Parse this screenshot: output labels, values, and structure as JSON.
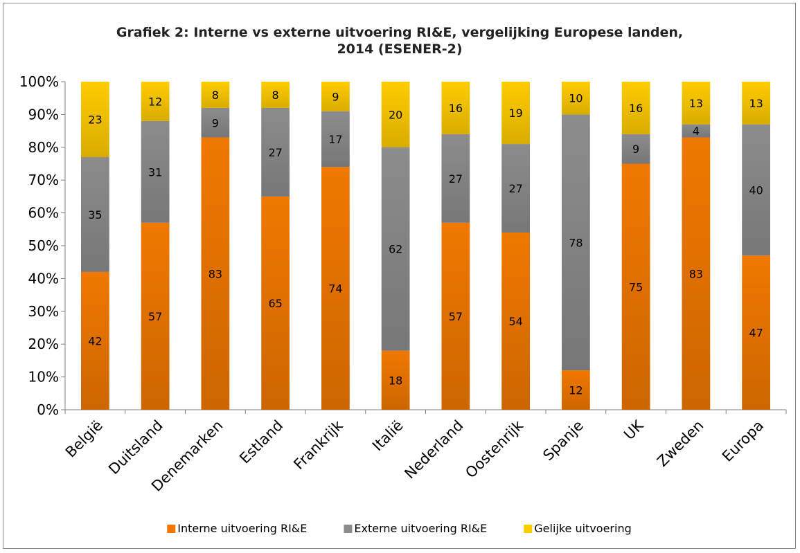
{
  "chart_data": {
    "type": "bar",
    "stacked": true,
    "title_line1": "Grafiek 2: Interne vs externe uitvoering RI&E, vergelijking Europese landen,",
    "title_line2": "2014 (ESENER-2)",
    "categories": [
      "België",
      "Duitsland",
      "Denemarken",
      "Estland",
      "Frankrijk",
      "Italië",
      "Nederland",
      "Oostenrijk",
      "Spanje",
      "UK",
      "Zweden",
      "Europa"
    ],
    "series": [
      {
        "name": "Interne uitvoering RI&E",
        "color": "#f07800",
        "values": [
          42,
          57,
          83,
          65,
          74,
          18,
          57,
          54,
          12,
          75,
          83,
          47
        ]
      },
      {
        "name": "Externe uitvoering RI&E",
        "color": "#8c8c8c",
        "values": [
          35,
          31,
          9,
          27,
          17,
          62,
          27,
          27,
          78,
          9,
          4,
          40
        ]
      },
      {
        "name": "Gelijke uitvoering",
        "color": "#ffcc00",
        "values": [
          23,
          12,
          8,
          8,
          9,
          20,
          16,
          19,
          10,
          16,
          13,
          13
        ]
      }
    ],
    "ylim": [
      0,
      100
    ],
    "yticks": [
      "0%",
      "10%",
      "20%",
      "30%",
      "40%",
      "50%",
      "60%",
      "70%",
      "80%",
      "90%",
      "100%"
    ],
    "grid": false,
    "legend": "bottom"
  }
}
